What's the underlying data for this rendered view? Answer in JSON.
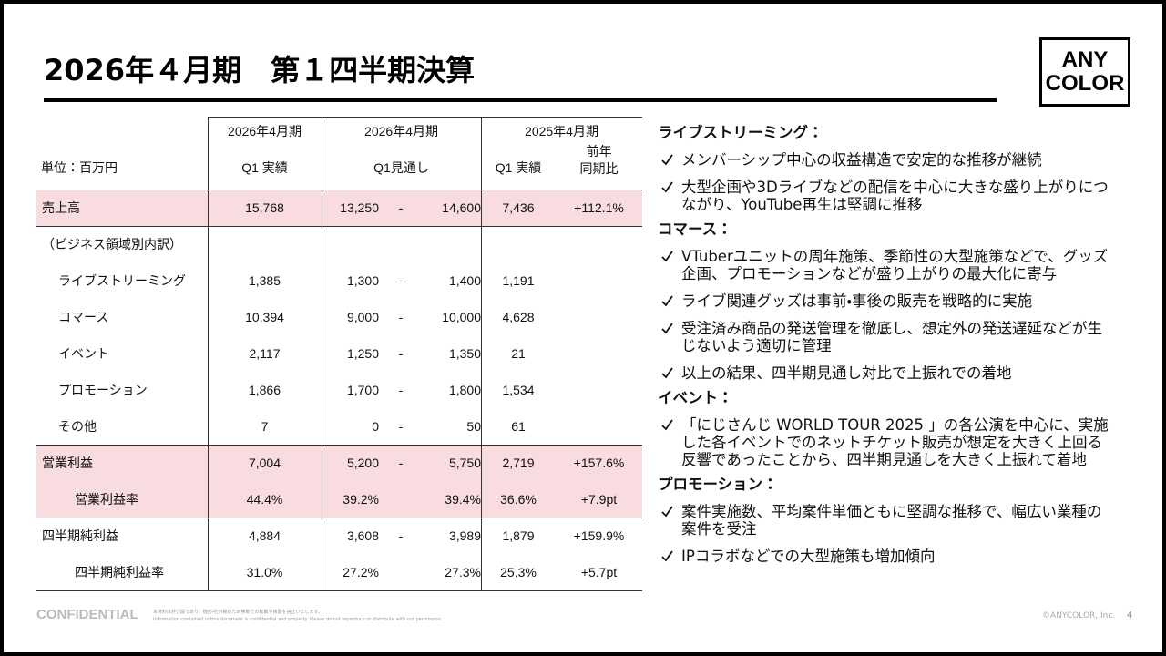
{
  "header": {
    "title": "2026年４月期　第１四半期決算",
    "logo": [
      "ANY",
      "COLOR"
    ]
  },
  "table": {
    "period_headers": [
      "2026年4月期",
      "2026年4月期",
      "2025年4月期"
    ],
    "column_headers": [
      "単位：百万円",
      "Q1 実績",
      "Q1見通し",
      "Q1 実績",
      [
        "前年",
        "同期比"
      ]
    ],
    "separator": "-",
    "rows": [
      {
        "label": "売上高",
        "highlight": true,
        "indent": 0,
        "actual": "15,768",
        "range": [
          "13,250",
          "14,600"
        ],
        "dashed": true,
        "prev": "7,436",
        "yoy": "+112.1%"
      },
      {
        "label": "（ビジネス領域別内訳）",
        "highlight": false,
        "indent": 0
      },
      {
        "label": "ライブストリーミング",
        "highlight": false,
        "indent": 1,
        "actual": "1,385",
        "range": [
          "1,300",
          "1,400"
        ],
        "dashed": true,
        "prev": "1,191"
      },
      {
        "label": "コマース",
        "highlight": false,
        "indent": 1,
        "actual": "10,394",
        "range": [
          "9,000",
          "10,000"
        ],
        "dashed": true,
        "prev": "4,628"
      },
      {
        "label": "イベント",
        "highlight": false,
        "indent": 1,
        "actual": "2,117",
        "range": [
          "1,250",
          "1,350"
        ],
        "dashed": true,
        "prev": "21"
      },
      {
        "label": "プロモーション",
        "highlight": false,
        "indent": 1,
        "actual": "1,866",
        "range": [
          "1,700",
          "1,800"
        ],
        "dashed": true,
        "prev": "1,534"
      },
      {
        "label": "その他",
        "highlight": false,
        "indent": 1,
        "actual": "7",
        "range": [
          "0",
          "50"
        ],
        "dashed": true,
        "prev": "61"
      },
      {
        "label": "営業利益",
        "highlight": true,
        "indent": 0,
        "actual": "7,004",
        "range": [
          "5,200",
          "5,750"
        ],
        "dashed": true,
        "prev": "2,719",
        "yoy": "+157.6%"
      },
      {
        "label": "営業利益率",
        "highlight": true,
        "indent": 2,
        "actual": "44.4%",
        "range": [
          "39.2%",
          "39.4%"
        ],
        "dashed": false,
        "prev": "36.6%",
        "yoy": "+7.9pt"
      },
      {
        "label": "四半期純利益",
        "highlight": false,
        "indent": 0,
        "actual": "4,884",
        "range": [
          "3,608",
          "3,989"
        ],
        "dashed": true,
        "prev": "1,879",
        "yoy": "+159.9%"
      },
      {
        "label": "四半期純利益率",
        "highlight": false,
        "indent": 2,
        "actual": "31.0%",
        "range": [
          "27.2%",
          "27.3%"
        ],
        "dashed": false,
        "prev": "25.3%",
        "yoy": "+5.7pt"
      }
    ]
  },
  "notes": [
    {
      "heading": "ライブストリーミング：",
      "items": [
        "メンバーシップ中心の収益構造で安定的な推移が継続",
        "大型企画や3Dライブなどの配信を中心に大きな盛り上がりにつながり、YouTube再生は堅調に推移"
      ]
    },
    {
      "heading": "コマース：",
      "items": [
        "VTuberユニットの周年施策、季節性の大型施策などで、グッズ企画、プロモーションなどが盛り上がりの最大化に寄与",
        "ライブ関連グッズは事前・事後の販売を戦略的に実施",
        "受注済み商品の発送管理を徹底し、想定外の発送遅延などが生じないよう適切に管理",
        "以上の結果、四半期見通し対比で上振れでの着地"
      ]
    },
    {
      "heading": "イベント：",
      "items": [
        "「にじさんじ WORLD TOUR 2025 」の各公演を中心に、実施した各イベントでのネットチケット販売が想定を大きく上回る反響であったことから、四半期見通しを大きく上振れて着地"
      ]
    },
    {
      "heading": "プロモーション：",
      "items": [
        "案件実施数、平均案件単価ともに堅調な推移で、幅広い業種の案件を受注",
        "IPコラボなどでの大型施策も増加傾向"
      ]
    }
  ],
  "footer": {
    "confidential": "CONFIDENTIAL",
    "disclaimer": [
      "本資料は非公開であり、機密・社外秘のため無断での転載や複製を禁止いたします。",
      "Information contained in this document is confidential and property. Please do not reproduce or distribute with out permission."
    ],
    "copyright": "©ANYCOLOR, Inc.",
    "page": "4"
  }
}
